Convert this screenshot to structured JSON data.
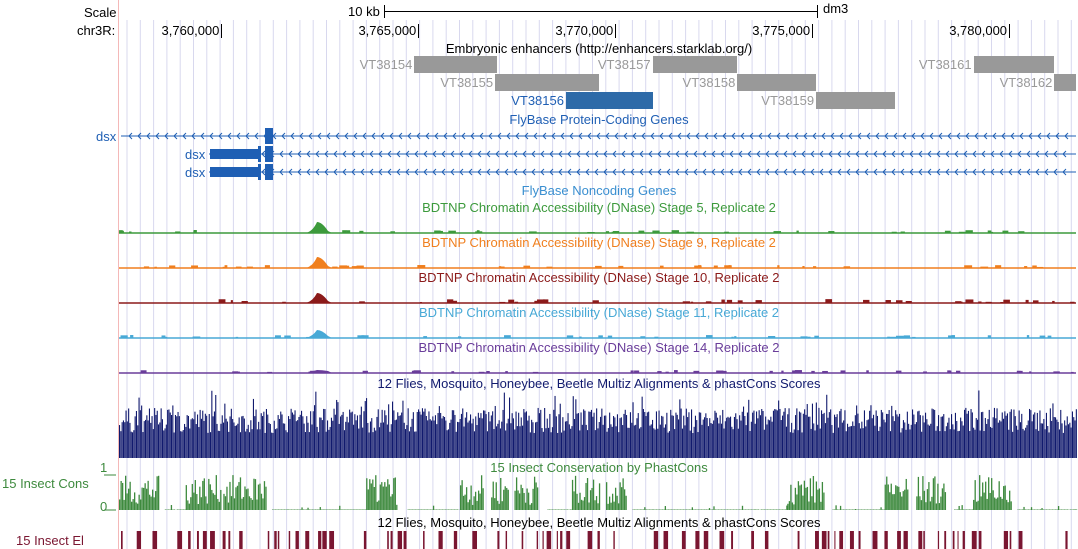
{
  "ruler": {
    "scale_label": "Scale",
    "chrom_label": "chr3R:",
    "scalebar_label": "10 kb",
    "assembly": "dm3",
    "positions": [
      "3,760,000",
      "3,765,000",
      "3,770,000",
      "3,775,000",
      "3,780,000"
    ]
  },
  "tracks": {
    "enhancers": {
      "title": "Embryonic enhancers (http://enhancers.starklab.org/)",
      "items": [
        {
          "name": "VT38154",
          "start": 3764900,
          "end": 3767000,
          "color": "#999999",
          "row": 0,
          "label_color": "#999999"
        },
        {
          "name": "VT38155",
          "start": 3766950,
          "end": 3769600,
          "color": "#999999",
          "row": 1,
          "label_color": "#999999"
        },
        {
          "name": "VT38156",
          "start": 3768750,
          "end": 3770950,
          "color": "#2d6aa8",
          "row": 2,
          "label_color": "#1f5fb4"
        },
        {
          "name": "VT38157",
          "start": 3770950,
          "end": 3773100,
          "color": "#999999",
          "row": 0,
          "label_color": "#999999"
        },
        {
          "name": "VT38158",
          "start": 3773100,
          "end": 3775100,
          "color": "#999999",
          "row": 1,
          "label_color": "#999999"
        },
        {
          "name": "VT38159",
          "start": 3775100,
          "end": 3777100,
          "color": "#999999",
          "row": 2,
          "label_color": "#999999"
        },
        {
          "name": "VT38161",
          "start": 3779100,
          "end": 3781150,
          "color": "#999999",
          "row": 0,
          "label_color": "#999999"
        },
        {
          "name": "VT38162",
          "start": 3781150,
          "end": 3783300,
          "color": "#999999",
          "row": 1,
          "label_color": "#999999"
        }
      ]
    },
    "coding_genes": {
      "title": "FlyBase Protein-Coding Genes",
      "genes": [
        {
          "name": "dsx"
        },
        {
          "name": "dsx"
        },
        {
          "name": "dsx"
        }
      ]
    },
    "noncoding_genes": {
      "title": "FlyBase Noncoding Genes"
    },
    "dnase": [
      {
        "title": "BDTNP Chromatin Accessibility (DNase) Stage 5, Replicate 2",
        "color": "#3c9a3c"
      },
      {
        "title": "BDTNP Chromatin Accessibility (DNase) Stage 9, Replicate 2",
        "color": "#f07f1e"
      },
      {
        "title": "BDTNP Chromatin Accessibility (DNase) Stage 10, Replicate 2",
        "color": "#8b1a1a"
      },
      {
        "title": "BDTNP Chromatin Accessibility (DNase) Stage 11, Replicate 2",
        "color": "#48a9d6"
      },
      {
        "title": "BDTNP Chromatin Accessibility (DNase) Stage 14, Replicate 2",
        "color": "#6a3d9a"
      }
    ],
    "multiz": {
      "title": "12 Flies, Mosquito, Honeybee, Beetle Multiz Alignments & phastCons Scores",
      "color": "#111a6e"
    },
    "phastcons": {
      "title": "15 Insect Conservation by PhastCons",
      "side_label": "15 Insect Cons",
      "max_label": "1",
      "min_label": "0",
      "color": "#3e8a3e"
    },
    "elements": {
      "title": "12 Flies, Mosquito, Honeybee, Beetle Multiz Alignments & phastCons Scores",
      "side_label": "15 Insect El",
      "color": "#7a1631"
    }
  }
}
